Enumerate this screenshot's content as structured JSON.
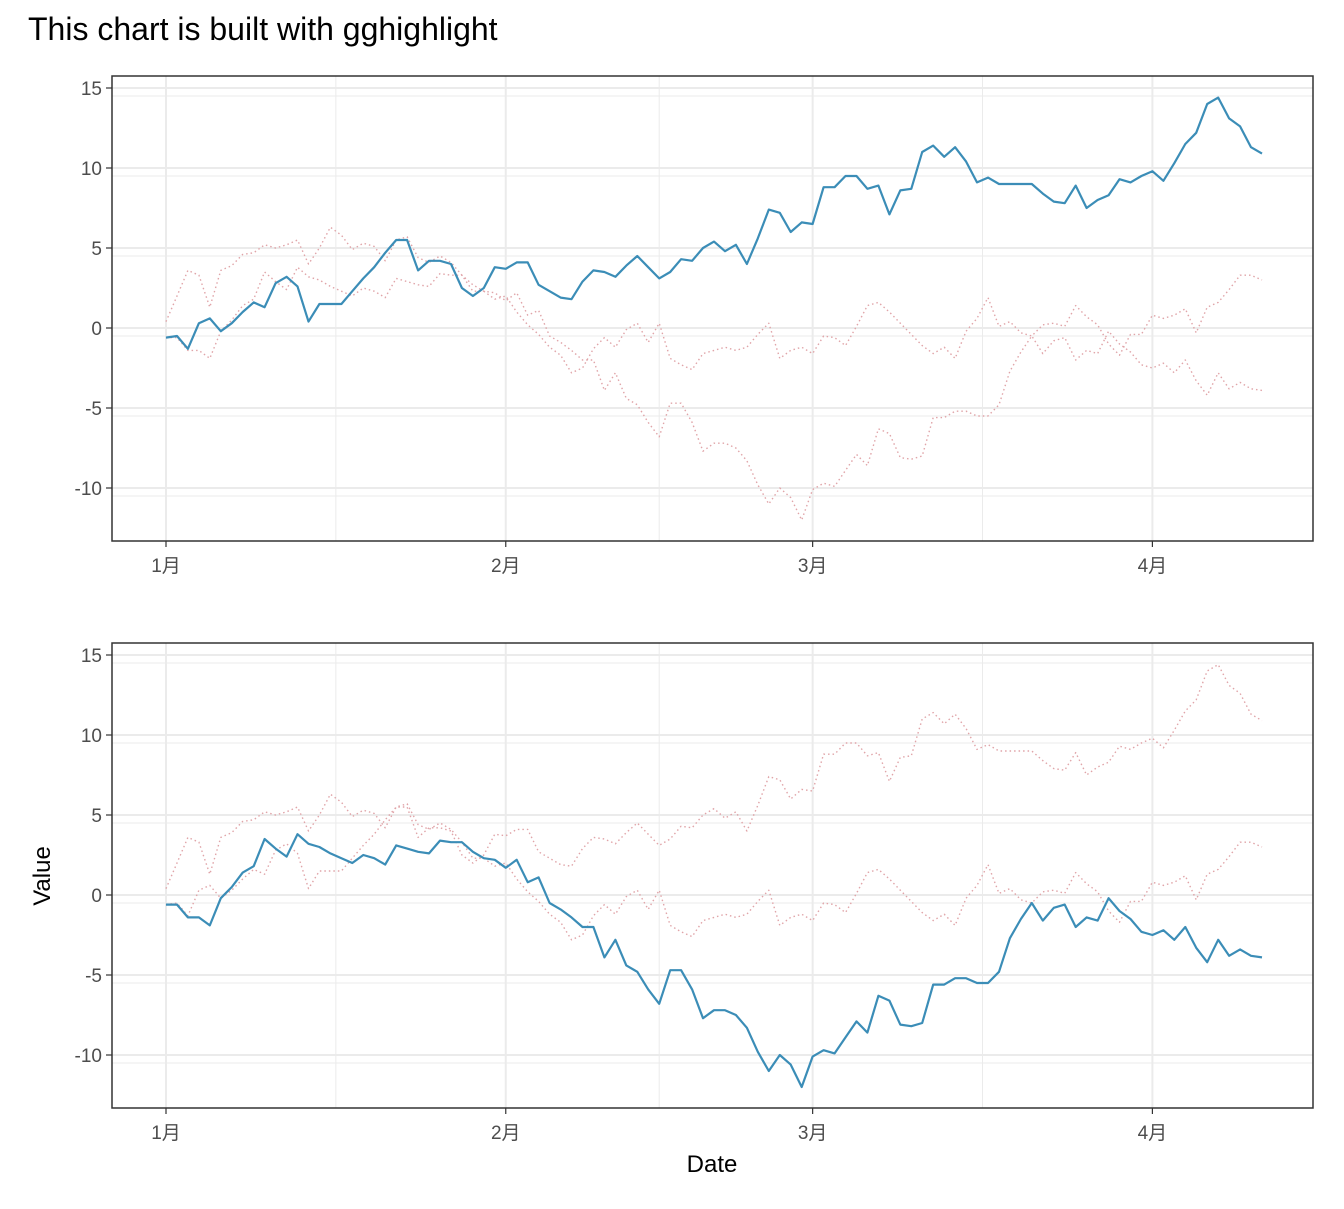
{
  "title": "This chart is built with gghighlight",
  "xlabel": "Date",
  "ylabel": "Value",
  "colors": {
    "highlight": "#3b8db7",
    "background": "#e0a4a8",
    "grid": "#ebebeb",
    "panel_border": "#333333"
  },
  "chart_data": {
    "type": "line",
    "title": "This chart is built with gghighlight",
    "xlabel": "Date",
    "ylabel": "Value",
    "x_tick_labels": [
      "1月",
      "2月",
      "3月",
      "4月"
    ],
    "x_tick_values": [
      "01-01",
      "02-01",
      "03-01",
      "04-01"
    ],
    "y_ticks": [
      -10,
      -5,
      0,
      5,
      10,
      15
    ],
    "ylim": [
      -13,
      16
    ],
    "grid": true,
    "legend": "none",
    "x_values": [
      "01-01",
      "01-02",
      "01-03",
      "01-04",
      "01-05",
      "01-06",
      "01-07",
      "01-08",
      "01-09",
      "01-10",
      "01-11",
      "01-12",
      "01-13",
      "01-14",
      "01-15",
      "01-16",
      "01-17",
      "01-18",
      "01-19",
      "01-20",
      "01-21",
      "01-22",
      "01-23",
      "01-24",
      "01-25",
      "01-26",
      "01-27",
      "01-28",
      "01-29",
      "01-30",
      "01-31",
      "02-01",
      "02-02",
      "02-03",
      "02-04",
      "02-05",
      "02-06",
      "02-07",
      "02-08",
      "02-09",
      "02-10",
      "02-11",
      "02-12",
      "02-13",
      "02-14",
      "02-15",
      "02-16",
      "02-17",
      "02-18",
      "02-19",
      "02-20",
      "02-21",
      "02-22",
      "02-23",
      "02-24",
      "02-25",
      "02-26",
      "02-27",
      "02-28",
      "03-01",
      "03-02",
      "03-03",
      "03-04",
      "03-05",
      "03-06",
      "03-07",
      "03-08",
      "03-09",
      "03-10",
      "03-11",
      "03-12",
      "03-13",
      "03-14",
      "03-15",
      "03-16",
      "03-17",
      "03-18",
      "03-19",
      "03-20",
      "03-21",
      "03-22",
      "03-23",
      "03-24",
      "03-25",
      "03-26",
      "03-27",
      "03-28",
      "03-29",
      "03-30",
      "03-31",
      "04-01",
      "04-02",
      "04-03",
      "04-04",
      "04-05",
      "04-06",
      "04-07",
      "04-08",
      "04-09",
      "04-10",
      "04-11"
    ],
    "series": [
      {
        "values": [
          -0.6,
          -0.5,
          -1.3,
          0.3,
          0.6,
          -0.2,
          0.3,
          1.0,
          1.6,
          1.3,
          2.8,
          3.2,
          2.6,
          0.4,
          1.5,
          1.5,
          1.5,
          2.3,
          3.1,
          3.8,
          4.7,
          5.5,
          5.5,
          3.6,
          4.2,
          4.2,
          4.0,
          2.5,
          2.0,
          2.5,
          3.8,
          3.7,
          4.1,
          4.1,
          2.7,
          2.3,
          1.9,
          1.8,
          2.9,
          3.6,
          3.5,
          3.2,
          3.9,
          4.5,
          3.8,
          3.1,
          3.5,
          4.3,
          4.2,
          5.0,
          5.4,
          4.8,
          5.2,
          4.0,
          5.6,
          7.4,
          7.2,
          6.0,
          6.6,
          6.5,
          8.8,
          8.8,
          9.5,
          9.5,
          8.7,
          8.9,
          7.1,
          8.6,
          8.7,
          11.0,
          11.4,
          10.7,
          11.3,
          10.4,
          9.1,
          9.4,
          9.0,
          9.0,
          9.0,
          9.0,
          8.4,
          7.9,
          7.8,
          8.9,
          7.5,
          8.0,
          8.3,
          9.3,
          9.1,
          9.5,
          9.8,
          9.2,
          10.3,
          11.5,
          12.2,
          14.0,
          14.4,
          13.1,
          12.6,
          11.3,
          10.9
        ]
      },
      {
        "values": [
          -0.6,
          -0.6,
          -1.4,
          -1.4,
          -1.9,
          -0.2,
          0.5,
          1.4,
          1.8,
          3.5,
          2.9,
          2.4,
          3.8,
          3.2,
          3.0,
          2.6,
          2.3,
          2.0,
          2.5,
          2.3,
          1.9,
          3.1,
          2.9,
          2.7,
          2.6,
          3.4,
          3.3,
          3.3,
          2.7,
          2.3,
          2.2,
          1.7,
          2.2,
          0.8,
          1.1,
          -0.5,
          -0.9,
          -1.4,
          -2.0,
          -2.0,
          -3.9,
          -2.8,
          -4.4,
          -4.8,
          -5.9,
          -6.8,
          -4.7,
          -4.7,
          -5.9,
          -7.7,
          -7.2,
          -7.2,
          -7.5,
          -8.3,
          -9.8,
          -11.0,
          -10.0,
          -10.6,
          -12.0,
          -10.1,
          -9.7,
          -9.9,
          -8.9,
          -7.9,
          -8.6,
          -6.3,
          -6.6,
          -8.1,
          -8.2,
          -8.0,
          -5.6,
          -5.6,
          -5.2,
          -5.2,
          -5.5,
          -5.5,
          -4.8,
          -2.7,
          -1.5,
          -0.5,
          -1.6,
          -0.8,
          -0.6,
          -2.0,
          -1.4,
          -1.6,
          -0.2,
          -1.0,
          -1.5,
          -2.3,
          -2.5,
          -2.2,
          -2.8,
          -2.0,
          -3.3,
          -4.2,
          -2.8,
          -3.8,
          -3.4,
          -3.8,
          -3.9
        ]
      },
      {
        "values": [
          0.4,
          2.0,
          3.6,
          3.3,
          1.3,
          3.6,
          3.9,
          4.6,
          4.7,
          5.2,
          5.0,
          5.2,
          5.5,
          4.0,
          5.0,
          6.3,
          5.8,
          4.9,
          5.3,
          5.1,
          4.2,
          5.5,
          5.7,
          4.4,
          4.1,
          4.5,
          4.1,
          3.3,
          2.3,
          2.3,
          1.8,
          2.0,
          1.0,
          0.2,
          -0.4,
          -1.2,
          -1.7,
          -2.8,
          -2.5,
          -1.3,
          -0.6,
          -1.2,
          -0.1,
          0.3,
          -0.9,
          0.3,
          -1.9,
          -2.3,
          -2.6,
          -1.6,
          -1.4,
          -1.2,
          -1.4,
          -1.2,
          -0.4,
          0.3,
          -1.9,
          -1.4,
          -1.2,
          -1.6,
          -0.5,
          -0.6,
          -1.1,
          0.1,
          1.4,
          1.6,
          1.0,
          0.3,
          -0.4,
          -1.1,
          -1.6,
          -1.2,
          -1.9,
          -0.2,
          0.6,
          1.9,
          0.1,
          0.4,
          -0.3,
          -0.5,
          0.2,
          0.3,
          0.1,
          1.4,
          0.7,
          0.2,
          -1.0,
          -1.7,
          -0.4,
          -0.4,
          0.8,
          0.6,
          0.8,
          1.2,
          -0.3,
          1.3,
          1.6,
          2.4,
          3.3,
          3.3,
          3.0
        ]
      }
    ],
    "panels": [
      {
        "highlighted_series": 0
      },
      {
        "highlighted_series": 1
      }
    ]
  }
}
